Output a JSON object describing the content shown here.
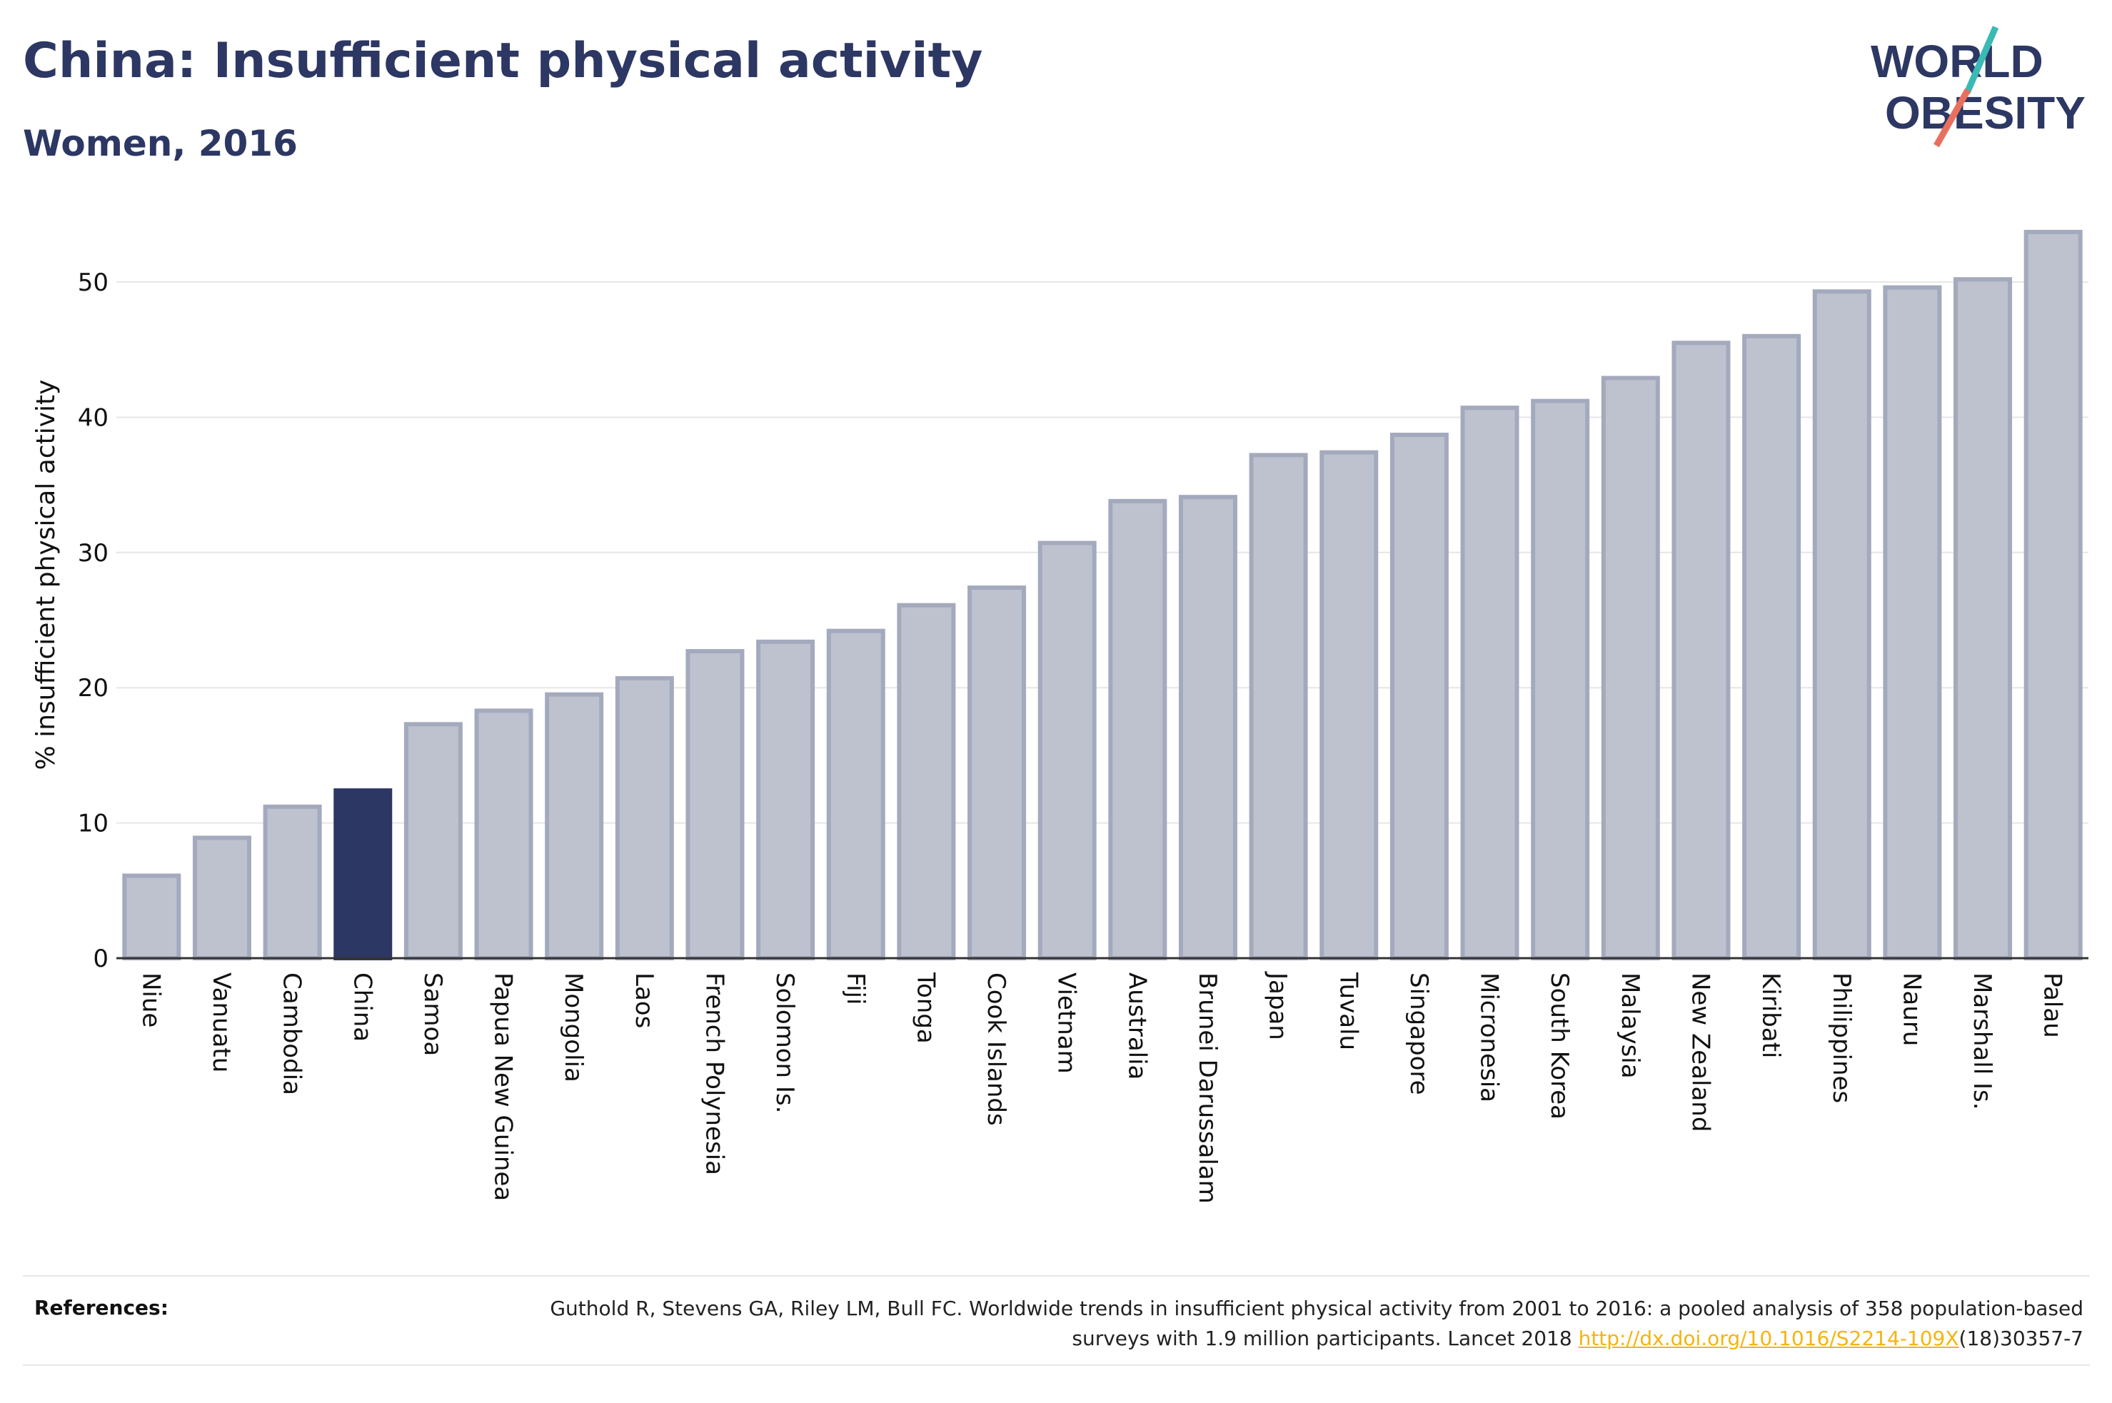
{
  "header": {
    "title": "China: Insufficient physical activity",
    "subtitle": "Women, 2016"
  },
  "logo": {
    "line1": "WORLD",
    "line2": "OBESITY",
    "icon": "world-obesity-logo"
  },
  "references": {
    "label": "References:",
    "text_before": "Guthold R, Stevens GA, Riley LM, Bull FC. Worldwide trends in insufficient physical activity from 2001 to 2016: a pooled analysis of 358 population-based surveys with 1.9 million participants. Lancet 2018 ",
    "link": "http://dx.doi.org/10.1016/S2214-109X",
    "text_after": "(18)30357-7"
  },
  "colors": {
    "highlight": "#2c3763",
    "bar": "#bec2cf",
    "bar_border": "#a4aabd",
    "text": "#2c3763"
  },
  "chart_data": {
    "type": "bar",
    "ylabel": "% insufficient physical activity",
    "ylim": [
      0,
      55
    ],
    "yticks": [
      0,
      10,
      20,
      30,
      40,
      50
    ],
    "grid": true,
    "highlight": "China",
    "categories": [
      "Niue",
      "Vanuatu",
      "Cambodia",
      "China",
      "Samoa",
      "Papua New Guinea",
      "Mongolia",
      "Laos",
      "French Polynesia",
      "Solomon Is.",
      "Fiji",
      "Tonga",
      "Cook Islands",
      "Vietnam",
      "Australia",
      "Brunei Darussalam",
      "Japan",
      "Tuvalu",
      "Singapore",
      "Micronesia",
      "South Korea",
      "Malaysia",
      "New Zealand",
      "Kiribati",
      "Philippines",
      "Nauru",
      "Marshall Is.",
      "Palau"
    ],
    "values": [
      6.1,
      8.9,
      11.2,
      12.4,
      17.3,
      18.3,
      19.5,
      20.7,
      22.7,
      23.4,
      24.2,
      26.1,
      27.4,
      30.7,
      33.8,
      34.1,
      37.2,
      37.4,
      38.7,
      40.7,
      41.2,
      42.9,
      45.5,
      46.0,
      49.3,
      49.6,
      50.2,
      53.7
    ]
  }
}
